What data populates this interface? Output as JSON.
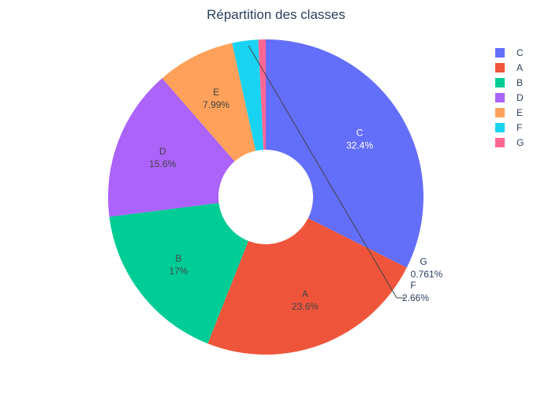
{
  "chart_data": {
    "type": "pie",
    "title": "Répartition des classes",
    "hole": true,
    "categories": [
      "C",
      "A",
      "B",
      "D",
      "E",
      "F",
      "G"
    ],
    "values": [
      32.4,
      23.6,
      17,
      15.6,
      7.99,
      2.66,
      0.761
    ],
    "value_labels": [
      "32.4%",
      "23.6%",
      "17%",
      "15.6%",
      "7.99%",
      "2.66%",
      "0.761%"
    ],
    "colors": [
      "#636efa",
      "#ef553b",
      "#00cc96",
      "#ab63fa",
      "#ffa15a",
      "#19d3f3",
      "#ff6692"
    ],
    "legend": {
      "position": "top-right",
      "entries": [
        "C",
        "A",
        "B",
        "D",
        "E",
        "F",
        "G"
      ]
    }
  }
}
